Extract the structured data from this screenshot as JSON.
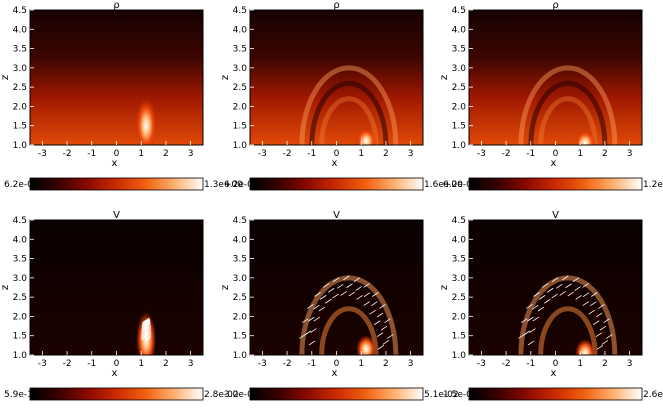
{
  "chart_data": [
    {
      "type": "heatmap",
      "title": "ρ",
      "xlabel": "x",
      "ylabel": "z",
      "xlim": [
        -3.5,
        3.5
      ],
      "ylim": [
        1.0,
        4.5
      ],
      "xticks": [
        "-3",
        "-2",
        "-1",
        "0",
        "1",
        "2",
        "3"
      ],
      "yticks": [
        "1.0",
        "1.5",
        "2.0",
        "2.5",
        "3.0",
        "3.5",
        "4.0",
        "4.5"
      ],
      "colorbar": {
        "min": "6.2e-01",
        "max": "1.3e+00"
      },
      "features": {
        "blob": {
          "x": 1.2,
          "z": 1.5
        },
        "arcs": false,
        "vectors": false
      }
    },
    {
      "type": "heatmap",
      "title": "ρ",
      "xlabel": "x",
      "ylabel": "z",
      "xlim": [
        -3.5,
        3.5
      ],
      "ylim": [
        1.0,
        4.5
      ],
      "xticks": [
        "-3",
        "-2",
        "-1",
        "0",
        "1",
        "2",
        "3"
      ],
      "yticks": [
        "1.0",
        "1.5",
        "2.0",
        "2.5",
        "3.0",
        "3.5",
        "4.0",
        "4.5"
      ],
      "colorbar": {
        "min": "6.2e-01",
        "max": "1.6e+00"
      },
      "features": {
        "blob": {
          "x": 1.2,
          "z": 1.1
        },
        "arcs": true,
        "vectors": false
      }
    },
    {
      "type": "heatmap",
      "title": "ρ",
      "xlabel": "x",
      "ylabel": "z",
      "xlim": [
        -3.5,
        3.5
      ],
      "ylim": [
        1.0,
        4.5
      ],
      "xticks": [
        "-3",
        "-2",
        "-1",
        "0",
        "1",
        "2",
        "3"
      ],
      "yticks": [
        "1.0",
        "1.5",
        "2.0",
        "2.5",
        "3.0",
        "3.5",
        "4.0",
        "4.5"
      ],
      "colorbar": {
        "min": "6.2e-01",
        "max": "1.2e+00"
      },
      "features": {
        "blob": {
          "x": 1.2,
          "z": 1.05
        },
        "arcs": true,
        "vectors": false
      }
    },
    {
      "type": "heatmap",
      "title": "V",
      "xlabel": "x",
      "ylabel": "z",
      "xlim": [
        -3.5,
        3.5
      ],
      "ylim": [
        1.0,
        4.5
      ],
      "xticks": [
        "-3",
        "-2",
        "-1",
        "0",
        "1",
        "2",
        "3"
      ],
      "yticks": [
        "1.0",
        "1.5",
        "2.0",
        "2.5",
        "3.0",
        "3.5",
        "4.0",
        "4.5"
      ],
      "colorbar": {
        "min": "5.9e-11",
        "max": "2.8e-02"
      },
      "features": {
        "blob": {
          "x": 1.2,
          "z": 1.4
        },
        "arcs": false,
        "vectors": true
      }
    },
    {
      "type": "heatmap",
      "title": "V",
      "xlabel": "x",
      "ylabel": "z",
      "xlim": [
        -3.5,
        3.5
      ],
      "ylim": [
        1.0,
        4.5
      ],
      "xticks": [
        "-3",
        "-2",
        "-1",
        "0",
        "1",
        "2",
        "3"
      ],
      "yticks": [
        "1.0",
        "1.5",
        "2.0",
        "2.5",
        "3.0",
        "3.5",
        "4.0",
        "4.5"
      ],
      "colorbar": {
        "min": "3.0e-08",
        "max": "5.1e-02"
      },
      "features": {
        "blob": {
          "x": 1.2,
          "z": 1.15
        },
        "arcs": true,
        "vectors": true
      }
    },
    {
      "type": "heatmap",
      "title": "V",
      "xlabel": "x",
      "ylabel": "z",
      "xlim": [
        -3.5,
        3.5
      ],
      "ylim": [
        1.0,
        4.5
      ],
      "xticks": [
        "-3",
        "-2",
        "-1",
        "0",
        "1",
        "2",
        "3"
      ],
      "yticks": [
        "1.0",
        "1.5",
        "2.0",
        "2.5",
        "3.0",
        "3.5",
        "4.0",
        "4.5"
      ],
      "colorbar": {
        "min": "1.5e-08",
        "max": "2.6e-02"
      },
      "features": {
        "blob": {
          "x": 1.2,
          "z": 1.05
        },
        "arcs": true,
        "vectors": true
      }
    }
  ],
  "colormap": {
    "name": "red-temperature",
    "stops": [
      "#000000",
      "#3a0000",
      "#8b0a00",
      "#cc2a00",
      "#f06010",
      "#ffb070",
      "#ffffff"
    ]
  }
}
